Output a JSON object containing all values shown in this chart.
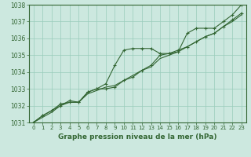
{
  "x": [
    0,
    1,
    2,
    3,
    4,
    5,
    6,
    7,
    8,
    9,
    10,
    11,
    12,
    13,
    14,
    15,
    16,
    17,
    18,
    19,
    20,
    21,
    22,
    23
  ],
  "line1": [
    1031.0,
    1031.4,
    1031.7,
    1032.0,
    1032.3,
    1032.2,
    1032.8,
    1033.0,
    1033.3,
    1034.4,
    1035.3,
    1035.4,
    1035.4,
    1035.4,
    1035.1,
    1035.1,
    1035.2,
    1036.3,
    1036.6,
    1036.6,
    1036.6,
    1037.0,
    1037.4,
    1038.0
  ],
  "line2": [
    1031.0,
    1031.4,
    1031.7,
    1032.1,
    1032.2,
    1032.2,
    1032.8,
    1033.0,
    1033.0,
    1033.1,
    1033.5,
    1033.7,
    1034.1,
    1034.4,
    1035.0,
    1035.1,
    1035.3,
    1035.5,
    1035.8,
    1036.1,
    1036.3,
    1036.7,
    1037.1,
    1037.5
  ],
  "line3": [
    1031.0,
    1031.3,
    1031.6,
    1032.0,
    1032.2,
    1032.2,
    1032.7,
    1032.9,
    1033.1,
    1033.2,
    1033.5,
    1033.8,
    1034.1,
    1034.3,
    1034.8,
    1035.0,
    1035.2,
    1035.5,
    1035.8,
    1036.1,
    1036.3,
    1036.7,
    1037.0,
    1037.4
  ],
  "ylim": [
    1031.0,
    1038.0
  ],
  "yticks": [
    1031,
    1032,
    1033,
    1034,
    1035,
    1036,
    1037,
    1038
  ],
  "xlabel": "Graphe pression niveau de la mer (hPa)",
  "bg_color": "#cce8df",
  "grid_color": "#99ccbb",
  "line_color": "#336633",
  "text_color": "#336633",
  "xlabel_color": "#336633"
}
